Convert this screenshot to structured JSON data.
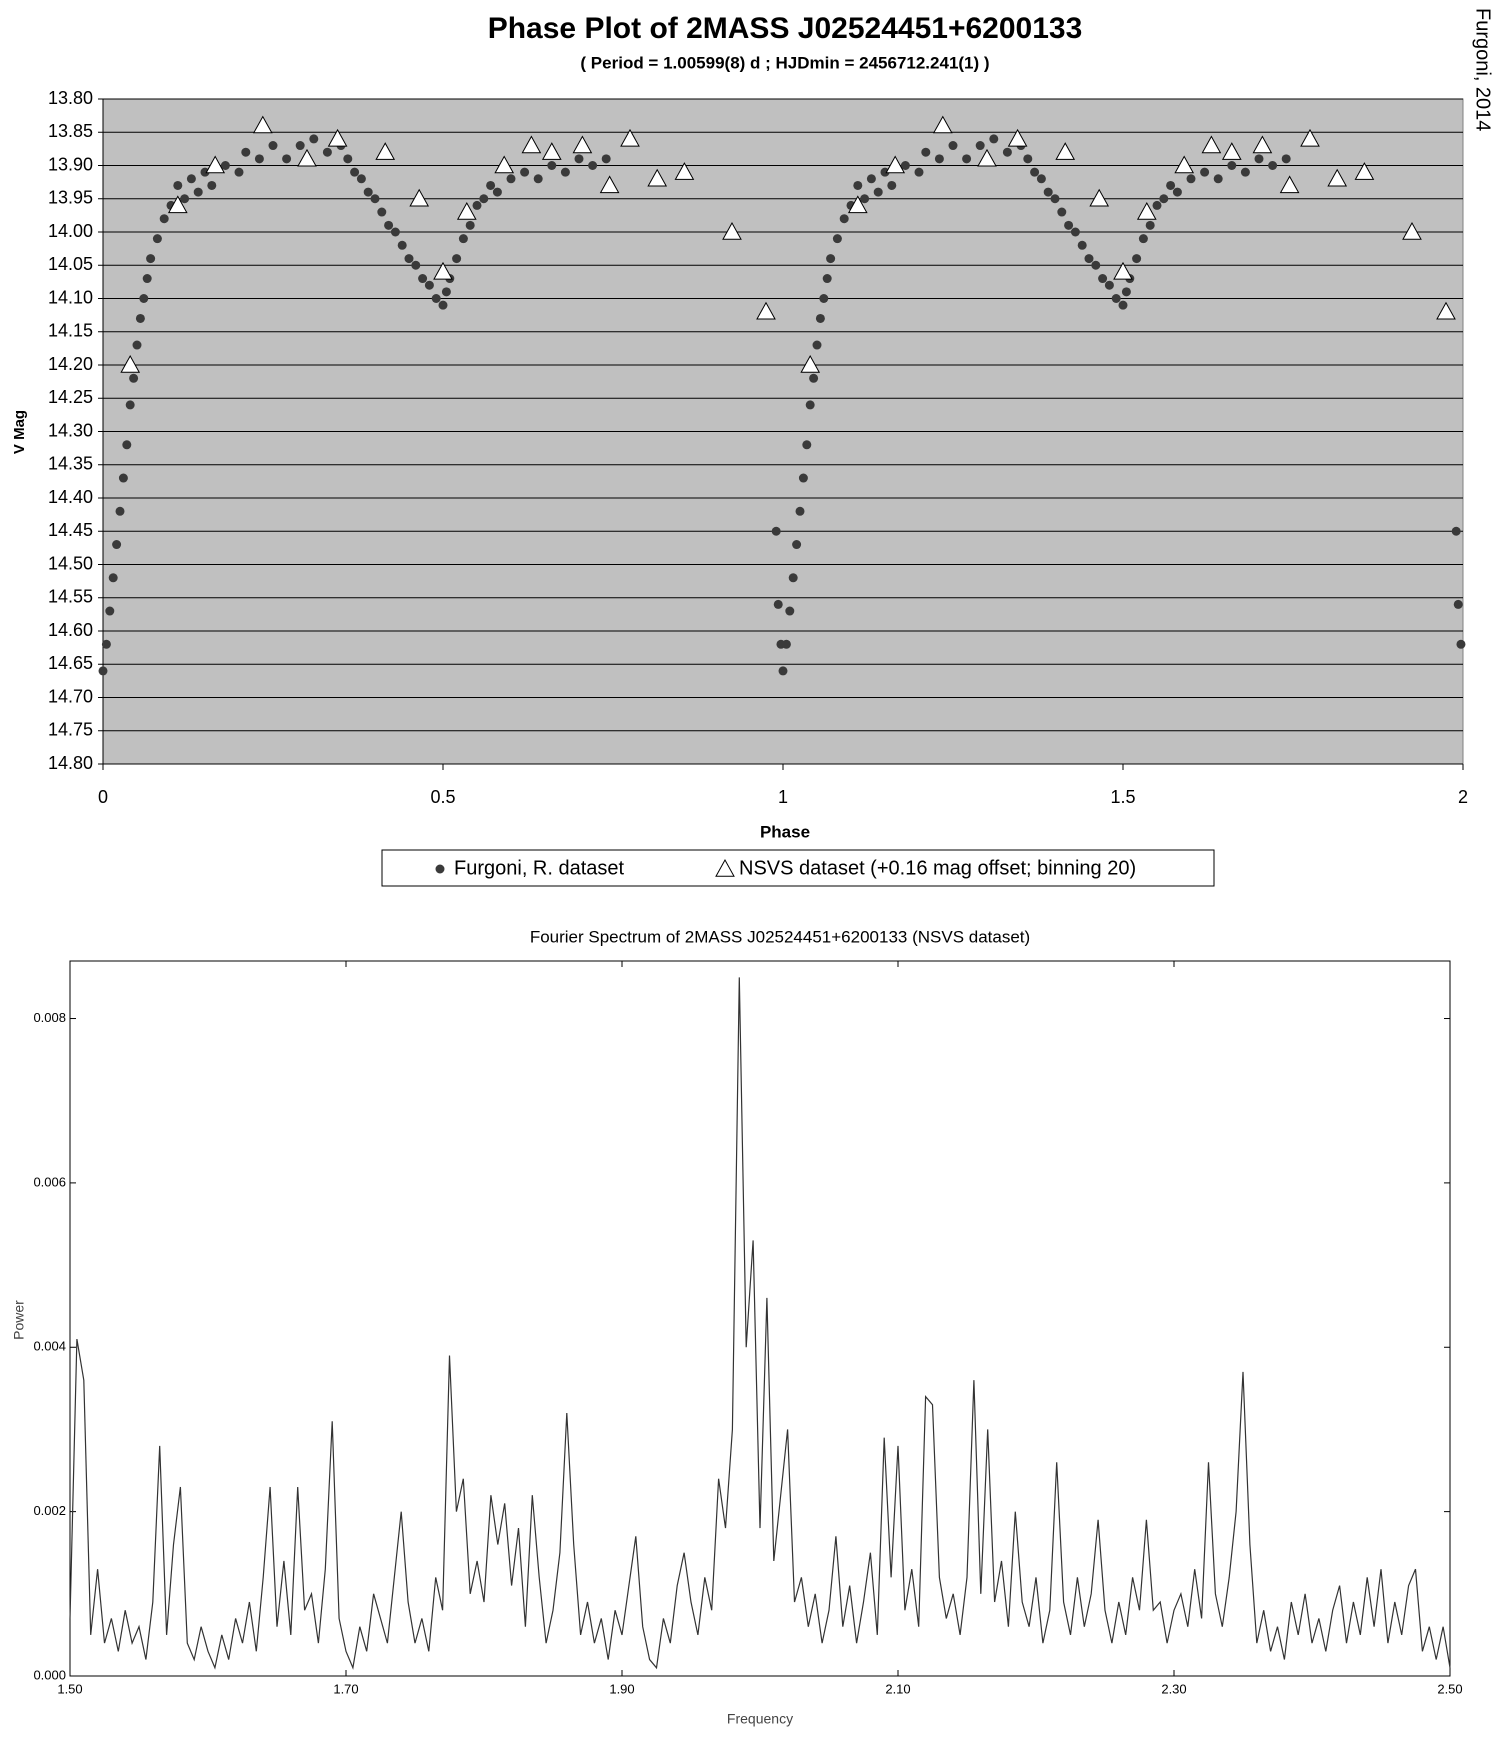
{
  "chart_data": [
    {
      "type": "scatter",
      "title": "Phase Plot of 2MASS J02524451+6200133",
      "subtitle": "( Period = 1.00599(8) d ; HJDmin = 2456712.241(1) )",
      "annotation": "Furgoni, 2014",
      "x_label": "Phase",
      "y_label": "V Mag",
      "xlim": [
        0,
        2
      ],
      "ylim": [
        14.8,
        13.8
      ],
      "xticks": [
        0,
        0.5,
        1,
        1.5,
        2
      ],
      "yticks": [
        {
          "value": 13.8,
          "label": "13.80"
        },
        13.85,
        {
          "value": 13.9,
          "label": "13.90"
        },
        13.95,
        {
          "value": 14.0,
          "label": "14.00"
        },
        14.05,
        {
          "value": 14.1,
          "label": "14.10"
        },
        14.15,
        {
          "value": 14.2,
          "label": "14.20"
        },
        14.25,
        {
          "value": 14.3,
          "label": "14.30"
        },
        14.35,
        {
          "value": 14.4,
          "label": "14.40"
        },
        14.45,
        {
          "value": 14.5,
          "label": "14.50"
        },
        14.55,
        {
          "value": 14.6,
          "label": "14.60"
        },
        14.65,
        {
          "value": 14.7,
          "label": "14.70"
        },
        14.75,
        {
          "value": 14.8,
          "label": "14.80"
        }
      ],
      "grid": true,
      "background": "#c0c0c0",
      "series": [
        {
          "name": "Furgoni, R. dataset",
          "color": "#3a3a3a",
          "marker": "circle",
          "x": [
            0.0,
            0.005,
            0.01,
            0.015,
            0.02,
            0.025,
            0.03,
            0.035,
            0.04,
            0.045,
            0.05,
            0.055,
            0.06,
            0.065,
            0.07,
            0.08,
            0.09,
            0.1,
            0.11,
            0.12,
            0.13,
            0.14,
            0.15,
            0.16,
            0.18,
            0.2,
            0.21,
            0.23,
            0.25,
            0.27,
            0.29,
            0.31,
            0.33,
            0.35,
            0.36,
            0.37,
            0.38,
            0.39,
            0.4,
            0.41,
            0.42,
            0.43,
            0.44,
            0.45,
            0.46,
            0.47,
            0.48,
            0.49,
            0.5,
            0.505,
            0.51,
            0.52,
            0.53,
            0.54,
            0.55,
            0.56,
            0.57,
            0.58,
            0.6,
            0.62,
            0.64,
            0.66,
            0.68,
            0.7,
            0.72,
            0.74,
            0.99,
            0.993,
            0.997,
            1.0,
            1.005,
            1.01,
            1.015,
            1.02,
            1.025,
            1.03,
            1.035,
            1.04,
            1.045,
            1.05,
            1.055,
            1.06,
            1.065,
            1.07,
            1.08,
            1.09,
            1.1,
            1.11,
            1.12,
            1.13,
            1.14,
            1.15,
            1.16,
            1.18,
            1.2,
            1.21,
            1.23,
            1.25,
            1.27,
            1.29,
            1.31,
            1.33,
            1.35,
            1.36,
            1.37,
            1.38,
            1.39,
            1.4,
            1.41,
            1.42,
            1.43,
            1.44,
            1.45,
            1.46,
            1.47,
            1.48,
            1.49,
            1.5,
            1.505,
            1.51,
            1.52,
            1.53,
            1.54,
            1.55,
            1.56,
            1.57,
            1.58,
            1.6,
            1.62,
            1.64,
            1.66,
            1.68,
            1.7,
            1.72,
            1.74,
            1.99,
            1.993,
            1.997
          ],
          "values": [
            14.66,
            14.62,
            14.57,
            14.52,
            14.47,
            14.42,
            14.37,
            14.32,
            14.26,
            14.22,
            14.17,
            14.13,
            14.1,
            14.07,
            14.04,
            14.01,
            13.98,
            13.96,
            13.93,
            13.95,
            13.92,
            13.94,
            13.91,
            13.93,
            13.9,
            13.91,
            13.88,
            13.89,
            13.87,
            13.89,
            13.87,
            13.86,
            13.88,
            13.87,
            13.89,
            13.91,
            13.92,
            13.94,
            13.95,
            13.97,
            13.99,
            14.0,
            14.02,
            14.04,
            14.05,
            14.07,
            14.08,
            14.1,
            14.11,
            14.09,
            14.07,
            14.04,
            14.01,
            13.99,
            13.96,
            13.95,
            13.93,
            13.94,
            13.92,
            13.91,
            13.92,
            13.9,
            13.91,
            13.89,
            13.9,
            13.89,
            14.45,
            14.56,
            14.62,
            14.66,
            14.62,
            14.57,
            14.52,
            14.47,
            14.42,
            14.37,
            14.32,
            14.26,
            14.22,
            14.17,
            14.13,
            14.1,
            14.07,
            14.04,
            14.01,
            13.98,
            13.96,
            13.93,
            13.95,
            13.92,
            13.94,
            13.91,
            13.93,
            13.9,
            13.91,
            13.88,
            13.89,
            13.87,
            13.89,
            13.87,
            13.86,
            13.88,
            13.87,
            13.89,
            13.91,
            13.92,
            13.94,
            13.95,
            13.97,
            13.99,
            14.0,
            14.02,
            14.04,
            14.05,
            14.07,
            14.08,
            14.1,
            14.11,
            14.09,
            14.07,
            14.04,
            14.01,
            13.99,
            13.96,
            13.95,
            13.93,
            13.94,
            13.92,
            13.91,
            13.92,
            13.9,
            13.91,
            13.89,
            13.9,
            13.89,
            14.45,
            14.56,
            14.62
          ]
        },
        {
          "name": "NSVS dataset (+0.16 mag offset; binning 20)",
          "color": "#ffffff",
          "marker": "triangle",
          "x": [
            0.04,
            0.11,
            0.165,
            0.235,
            0.3,
            0.345,
            0.415,
            0.465,
            0.5,
            0.535,
            0.59,
            0.63,
            0.66,
            0.705,
            0.745,
            0.775,
            0.815,
            0.855,
            0.925,
            0.975,
            1.04,
            1.11,
            1.165,
            1.235,
            1.3,
            1.345,
            1.415,
            1.465,
            1.5,
            1.535,
            1.59,
            1.63,
            1.66,
            1.705,
            1.745,
            1.775,
            1.815,
            1.855,
            1.925,
            1.975
          ],
          "values": [
            14.2,
            13.96,
            13.9,
            13.84,
            13.89,
            13.86,
            13.88,
            13.95,
            14.06,
            13.97,
            13.9,
            13.87,
            13.88,
            13.87,
            13.93,
            13.86,
            13.92,
            13.91,
            14.0,
            14.12,
            14.2,
            13.96,
            13.9,
            13.84,
            13.89,
            13.86,
            13.88,
            13.95,
            14.06,
            13.97,
            13.9,
            13.87,
            13.88,
            13.87,
            13.93,
            13.86,
            13.92,
            13.91,
            14.0,
            14.12
          ]
        }
      ]
    },
    {
      "type": "line",
      "title": "Fourier Spectrum of 2MASS J02524451+6200133 (NSVS dataset)",
      "x_label": "Frequency",
      "y_label": "Power",
      "xlim": [
        1.5,
        2.5
      ],
      "ylim": [
        0,
        0.0087
      ],
      "xticks": [
        {
          "value": 1.5,
          "label": "1.50"
        },
        {
          "value": 1.7,
          "label": "1.70"
        },
        {
          "value": 1.9,
          "label": "1.90"
        },
        {
          "value": 2.1,
          "label": "2.10"
        },
        {
          "value": 2.3,
          "label": "2.30"
        },
        {
          "value": 2.5,
          "label": "2.50"
        }
      ],
      "yticks": [
        {
          "value": 0,
          "label": "0.000"
        },
        0.002,
        0.004,
        0.006,
        0.008
      ],
      "x": [
        1.5,
        1.505,
        1.51,
        1.515,
        1.52,
        1.525,
        1.53,
        1.535,
        1.54,
        1.545,
        1.55,
        1.555,
        1.56,
        1.565,
        1.57,
        1.575,
        1.58,
        1.585,
        1.59,
        1.595,
        1.6,
        1.605,
        1.61,
        1.615,
        1.62,
        1.625,
        1.63,
        1.635,
        1.64,
        1.645,
        1.65,
        1.655,
        1.66,
        1.665,
        1.67,
        1.675,
        1.68,
        1.685,
        1.69,
        1.695,
        1.7,
        1.705,
        1.71,
        1.715,
        1.72,
        1.725,
        1.73,
        1.735,
        1.74,
        1.745,
        1.75,
        1.755,
        1.76,
        1.765,
        1.77,
        1.775,
        1.78,
        1.785,
        1.79,
        1.795,
        1.8,
        1.805,
        1.81,
        1.815,
        1.82,
        1.825,
        1.83,
        1.835,
        1.84,
        1.845,
        1.85,
        1.855,
        1.86,
        1.865,
        1.87,
        1.875,
        1.88,
        1.885,
        1.89,
        1.895,
        1.9,
        1.905,
        1.91,
        1.915,
        1.92,
        1.925,
        1.93,
        1.935,
        1.94,
        1.945,
        1.95,
        1.955,
        1.96,
        1.965,
        1.97,
        1.975,
        1.98,
        1.985,
        1.99,
        1.995,
        2.0,
        2.005,
        2.01,
        2.015,
        2.02,
        2.025,
        2.03,
        2.035,
        2.04,
        2.045,
        2.05,
        2.055,
        2.06,
        2.065,
        2.07,
        2.075,
        2.08,
        2.085,
        2.09,
        2.095,
        2.1,
        2.105,
        2.11,
        2.115,
        2.12,
        2.125,
        2.13,
        2.135,
        2.14,
        2.145,
        2.15,
        2.155,
        2.16,
        2.165,
        2.17,
        2.175,
        2.18,
        2.185,
        2.19,
        2.195,
        2.2,
        2.205,
        2.21,
        2.215,
        2.22,
        2.225,
        2.23,
        2.235,
        2.24,
        2.245,
        2.25,
        2.255,
        2.26,
        2.265,
        2.27,
        2.275,
        2.28,
        2.285,
        2.29,
        2.295,
        2.3,
        2.305,
        2.31,
        2.315,
        2.32,
        2.325,
        2.33,
        2.335,
        2.34,
        2.345,
        2.35,
        2.355,
        2.36,
        2.365,
        2.37,
        2.375,
        2.38,
        2.385,
        2.39,
        2.395,
        2.4,
        2.405,
        2.41,
        2.415,
        2.42,
        2.425,
        2.43,
        2.435,
        2.44,
        2.445,
        2.45,
        2.455,
        2.46,
        2.465,
        2.47,
        2.475,
        2.48,
        2.485,
        2.49,
        2.495,
        2.5
      ],
      "series": [
        {
          "color": "#333333",
          "values": [
            0.0007,
            0.0041,
            0.0036,
            0.0005,
            0.0013,
            0.0004,
            0.0007,
            0.0003,
            0.0008,
            0.0004,
            0.0006,
            0.0002,
            0.0009,
            0.0028,
            0.0005,
            0.0016,
            0.0023,
            0.0004,
            0.0002,
            0.0006,
            0.0003,
            0.0001,
            0.0005,
            0.0002,
            0.0007,
            0.0004,
            0.0009,
            0.0003,
            0.0012,
            0.0023,
            0.0006,
            0.0014,
            0.0005,
            0.0023,
            0.0008,
            0.001,
            0.0004,
            0.0013,
            0.0031,
            0.0007,
            0.0003,
            0.0001,
            0.0006,
            0.0003,
            0.001,
            0.0007,
            0.0004,
            0.0012,
            0.002,
            0.0009,
            0.0004,
            0.0007,
            0.0003,
            0.0012,
            0.0008,
            0.0039,
            0.002,
            0.0024,
            0.001,
            0.0014,
            0.0009,
            0.0022,
            0.0016,
            0.0021,
            0.0011,
            0.0018,
            0.0006,
            0.0022,
            0.0012,
            0.0004,
            0.0008,
            0.0015,
            0.0032,
            0.0016,
            0.0005,
            0.0009,
            0.0004,
            0.0007,
            0.0002,
            0.0008,
            0.0005,
            0.0011,
            0.0017,
            0.0006,
            0.0002,
            0.0001,
            0.0007,
            0.0004,
            0.0011,
            0.0015,
            0.0009,
            0.0005,
            0.0012,
            0.0008,
            0.0024,
            0.0018,
            0.003,
            0.0085,
            0.004,
            0.0053,
            0.0018,
            0.0046,
            0.0014,
            0.0022,
            0.003,
            0.0009,
            0.0012,
            0.0006,
            0.001,
            0.0004,
            0.0008,
            0.0017,
            0.0006,
            0.0011,
            0.0004,
            0.0009,
            0.0015,
            0.0005,
            0.0029,
            0.0012,
            0.0028,
            0.0008,
            0.0013,
            0.0006,
            0.0034,
            0.0033,
            0.0012,
            0.0007,
            0.001,
            0.0005,
            0.0012,
            0.0036,
            0.001,
            0.003,
            0.0009,
            0.0014,
            0.0006,
            0.002,
            0.0009,
            0.0006,
            0.0012,
            0.0004,
            0.0008,
            0.0026,
            0.0009,
            0.0005,
            0.0012,
            0.0006,
            0.001,
            0.0019,
            0.0008,
            0.0004,
            0.0009,
            0.0005,
            0.0012,
            0.0008,
            0.0019,
            0.0008,
            0.0009,
            0.0004,
            0.0008,
            0.001,
            0.0006,
            0.0013,
            0.0007,
            0.0026,
            0.001,
            0.0006,
            0.0012,
            0.002,
            0.0037,
            0.0016,
            0.0004,
            0.0008,
            0.0003,
            0.0006,
            0.0002,
            0.0009,
            0.0005,
            0.001,
            0.0004,
            0.0007,
            0.0003,
            0.0008,
            0.0011,
            0.0004,
            0.0009,
            0.0005,
            0.0012,
            0.0006,
            0.0013,
            0.0004,
            0.0009,
            0.0005,
            0.0011,
            0.0013,
            0.0003,
            0.0006,
            0.0002,
            0.0006,
            0.0001
          ]
        }
      ]
    }
  ]
}
